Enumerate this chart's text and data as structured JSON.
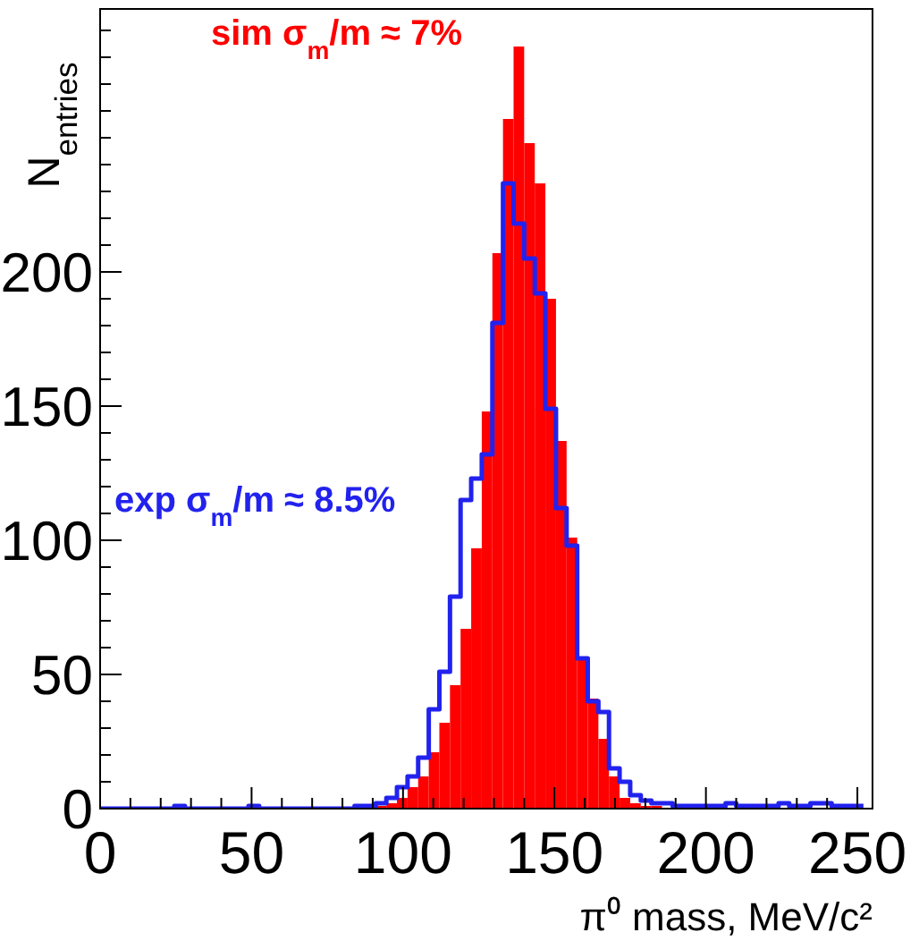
{
  "chart_data": {
    "type": "histogram",
    "xlabel": "π⁰ mass, MeV/c²",
    "ylabel": "N$_{entries}$",
    "annotations": [
      "sim σ$_{m}$/m ≈ 7%",
      "exp σ$_{m}$/m ≈ 8.5%"
    ],
    "bins": [
      0,
      3.5,
      7,
      10.5,
      14,
      17.5,
      21,
      24.5,
      28,
      31.5,
      35,
      38.5,
      42,
      45.5,
      49,
      52.5,
      56,
      59.5,
      63,
      66.5,
      70,
      73.5,
      77,
      80.5,
      84,
      87.5,
      91,
      94.5,
      98,
      101.5,
      105,
      108.5,
      112,
      115.5,
      119,
      122.5,
      126,
      129.5,
      133,
      136.5,
      140,
      143.5,
      147,
      150.5,
      154,
      157.5,
      161,
      164.5,
      168,
      171.5,
      175,
      178.5,
      182,
      185.5,
      189,
      192.5,
      196,
      199.5,
      203,
      206.5,
      210,
      213.5,
      217,
      220.5,
      224,
      227.5,
      231,
      234.5,
      238,
      241.5,
      245,
      248.5,
      252
    ],
    "series": [
      {
        "name": null,
        "color": "#ff0000",
        "values": [
          0,
          0,
          0,
          0,
          0,
          0,
          0,
          0,
          0,
          0,
          0,
          0,
          0,
          0,
          0,
          0,
          0,
          0,
          0,
          0,
          0,
          0,
          0,
          0,
          0,
          0,
          1,
          2,
          4,
          8,
          12,
          21,
          32,
          46,
          67,
          97,
          148,
          207,
          257,
          284,
          248,
          233,
          190,
          137,
          101,
          56,
          41,
          26,
          12,
          4,
          2,
          1,
          1,
          0,
          0,
          0,
          0,
          0,
          0,
          0,
          0,
          0,
          0,
          0,
          0,
          0,
          0,
          0,
          0,
          0,
          0,
          0
        ]
      },
      {
        "name": null,
        "type": "step",
        "color": "#2222ee",
        "x": [
          0,
          3.5,
          7,
          10.5,
          14,
          17.5,
          21,
          24.5,
          28,
          31.5,
          35,
          38.5,
          42,
          45.5,
          49,
          52.5,
          56,
          59.5,
          63,
          66.5,
          70,
          73.5,
          77,
          80.5,
          84,
          87.5,
          91,
          94.5,
          98,
          101.5,
          105,
          108.5,
          112,
          115.5,
          119,
          122.5,
          126,
          129.5,
          133,
          136.5,
          140,
          143.5,
          147,
          150.5,
          154,
          157.5,
          161,
          164.5,
          168,
          171.5,
          175,
          178.5,
          182,
          185.5,
          189,
          192.5,
          196,
          199.5,
          203,
          206.5,
          210,
          213.5,
          217,
          220.5,
          224,
          227.5,
          231,
          234.5,
          238,
          241.5,
          245,
          248.5,
          252
        ],
        "values": [
          0,
          0,
          0,
          0,
          0,
          0,
          0,
          1,
          0,
          0,
          0,
          0,
          0,
          0,
          1,
          0,
          0,
          0,
          0,
          0,
          0,
          0,
          0,
          0,
          1,
          1,
          2,
          4,
          8,
          12,
          19,
          37,
          51,
          79,
          115,
          123,
          132,
          181,
          233,
          218,
          205,
          192,
          149,
          112,
          98,
          56,
          40,
          36,
          15,
          10,
          5,
          3,
          2,
          2,
          1,
          1,
          1,
          1,
          1,
          2,
          1,
          1,
          1,
          1,
          2,
          1,
          1,
          2,
          2,
          1,
          1,
          1,
          1
        ]
      }
    ],
    "xlim": [
      0,
      255
    ],
    "ylim": [
      0,
      298
    ],
    "xticks": [
      0,
      {
        "value": 10,
        "label": null
      },
      {
        "value": 20,
        "label": null
      },
      {
        "value": 30,
        "label": null
      },
      {
        "value": 40,
        "label": null
      },
      50,
      {
        "value": 60,
        "label": null
      },
      {
        "value": 70,
        "label": null
      },
      {
        "value": 80,
        "label": null
      },
      {
        "value": 90,
        "label": null
      },
      100,
      {
        "value": 110,
        "label": null
      },
      {
        "value": 120,
        "label": null
      },
      {
        "value": 130,
        "label": null
      },
      {
        "value": 140,
        "label": null
      },
      150,
      {
        "value": 160,
        "label": null
      },
      {
        "value": 170,
        "label": null
      },
      {
        "value": 180,
        "label": null
      },
      {
        "value": 190,
        "label": null
      },
      200,
      {
        "value": 210,
        "label": null
      },
      {
        "value": 220,
        "label": null
      },
      {
        "value": 230,
        "label": null
      },
      {
        "value": 240,
        "label": null
      },
      250
    ],
    "yticks": [
      0,
      {
        "value": 10,
        "label": null
      },
      {
        "value": 20,
        "label": null
      },
      {
        "value": 30,
        "label": null
      },
      {
        "value": 40,
        "label": null
      },
      50,
      {
        "value": 60,
        "label": null
      },
      {
        "value": 70,
        "label": null
      },
      {
        "value": 80,
        "label": null
      },
      {
        "value": 90,
        "label": null
      },
      100,
      {
        "value": 110,
        "label": null
      },
      {
        "value": 120,
        "label": null
      },
      {
        "value": 130,
        "label": null
      },
      {
        "value": 140,
        "label": null
      },
      150,
      {
        "value": 160,
        "label": null
      },
      {
        "value": 170,
        "label": null
      },
      {
        "value": 180,
        "label": null
      },
      {
        "value": 190,
        "label": null
      },
      200,
      {
        "value": 210,
        "label": null
      },
      {
        "value": 220,
        "label": null
      },
      {
        "value": 230,
        "label": null
      },
      {
        "value": 240,
        "label": null
      },
      {
        "value": 250,
        "label": null
      },
      {
        "value": 260,
        "label": null
      },
      {
        "value": 270,
        "label": null
      },
      {
        "value": 280,
        "label": null
      },
      {
        "value": 290,
        "label": null
      }
    ]
  }
}
